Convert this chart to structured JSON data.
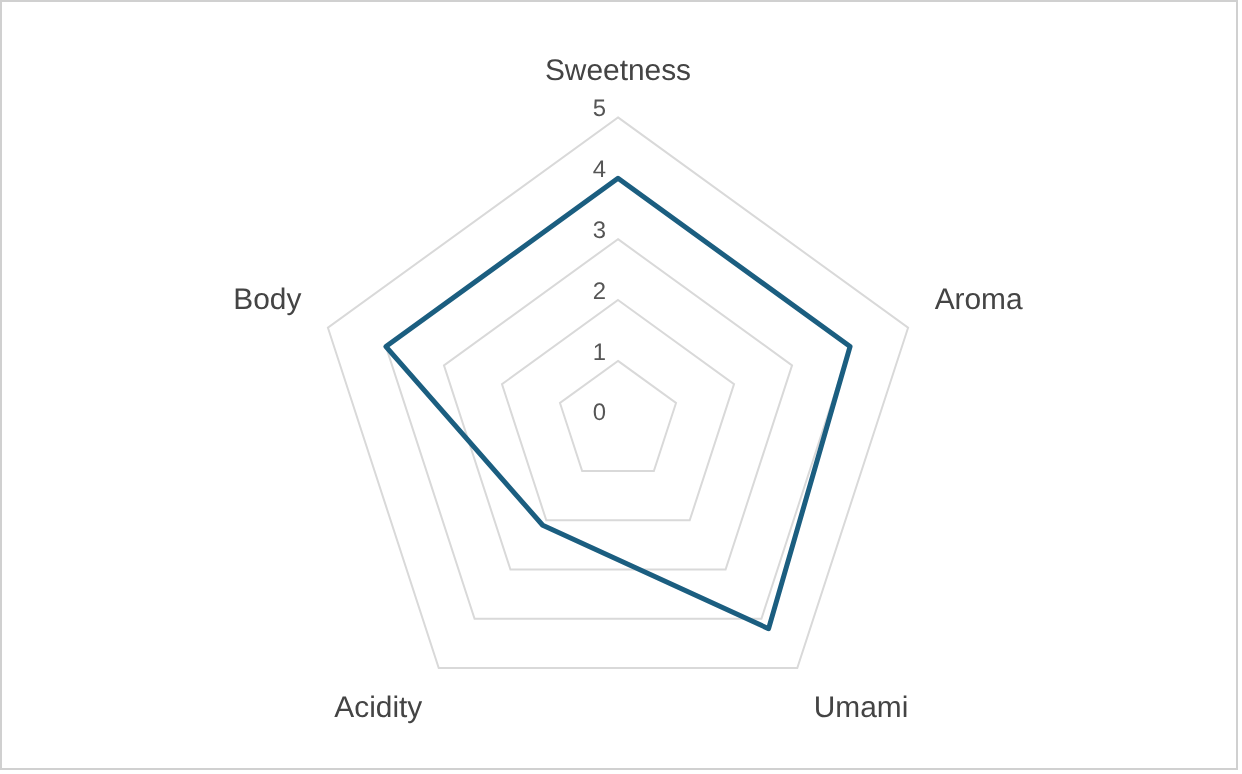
{
  "chart_data": {
    "type": "radar",
    "categories": [
      "Sweetness",
      "Aroma",
      "Umami",
      "Acidity",
      "Body"
    ],
    "series": [
      {
        "color": "#1b5e80",
        "values": [
          4,
          4,
          4.2,
          2.1,
          4
        ]
      }
    ],
    "ylim": [
      0,
      5
    ],
    "yticks": [
      0,
      1,
      2,
      3,
      4,
      5
    ],
    "grid": true,
    "legend": false,
    "marker": "none"
  }
}
